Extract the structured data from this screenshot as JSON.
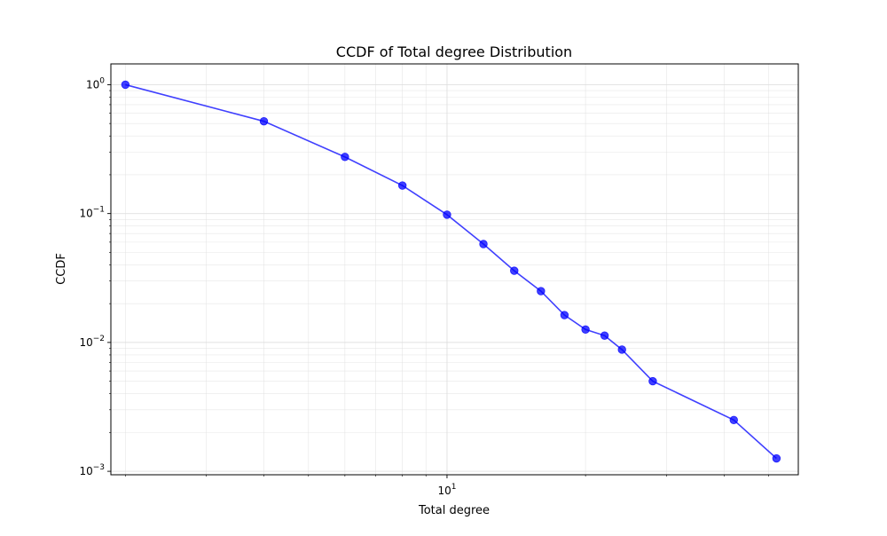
{
  "chart_data": {
    "type": "line",
    "title": "CCDF of Total degree Distribution",
    "xlabel": "Total degree",
    "ylabel": "CCDF",
    "xscale": "log",
    "yscale": "log",
    "xlim": [
      1.86,
      58
    ],
    "ylim": [
      0.00094,
      1.45
    ],
    "grid": true,
    "marker": "circle",
    "colors": {
      "series": "#0000ff",
      "grid": "#dddddd",
      "axes": "#000000"
    },
    "x_ticks": [
      {
        "value": 10,
        "base": "10",
        "exp": "1"
      }
    ],
    "y_ticks": [
      {
        "value": 1,
        "base": "10",
        "exp": "0"
      },
      {
        "value": 0.1,
        "base": "10",
        "exp": "−1"
      },
      {
        "value": 0.01,
        "base": "10",
        "exp": "−2"
      },
      {
        "value": 0.001,
        "base": "10",
        "exp": "−3"
      }
    ],
    "series": [
      {
        "x": [
          2,
          4,
          6,
          8,
          10,
          12,
          14,
          16,
          18,
          20,
          22,
          24,
          28,
          42,
          52
        ],
        "y": [
          1.0,
          0.52,
          0.275,
          0.165,
          0.098,
          0.058,
          0.036,
          0.025,
          0.0163,
          0.0126,
          0.0113,
          0.0088,
          0.005,
          0.0025,
          0.00126
        ]
      }
    ]
  }
}
